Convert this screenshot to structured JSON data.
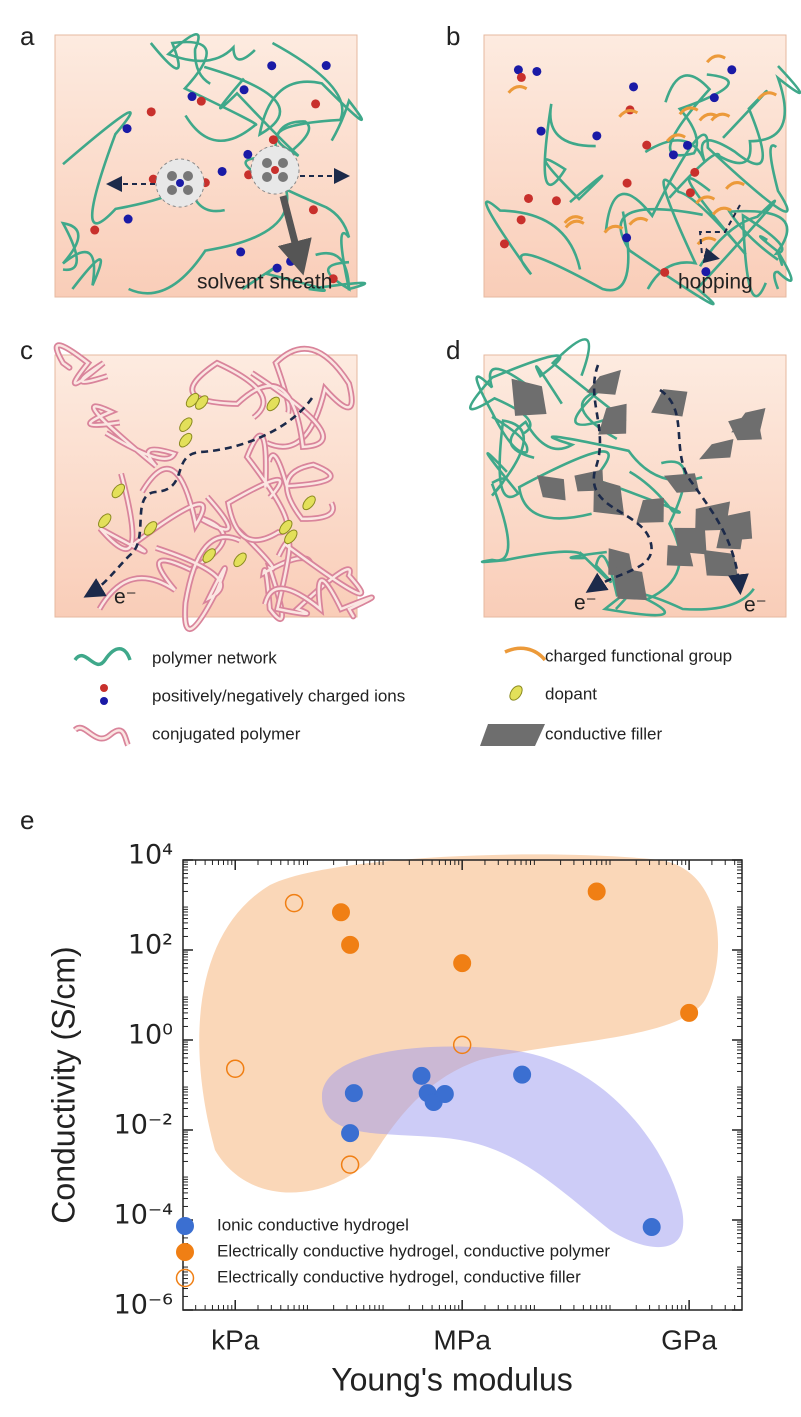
{
  "panels": {
    "a": {
      "label": "a",
      "annotation": "solvent sheath"
    },
    "b": {
      "label": "b",
      "annotation": "hopping"
    },
    "c": {
      "label": "c",
      "annotation": "e⁻"
    },
    "d": {
      "label": "d",
      "annotations": [
        "e⁻",
        "e⁻"
      ]
    }
  },
  "legend": [
    "polymer network",
    "positively/negatively charged ions",
    "conjugated polymer",
    "charged functional group",
    "dopant",
    "conductive filler"
  ],
  "chart_data": {
    "type": "scatter",
    "panel_label": "e",
    "x_label": "Young's modulus",
    "y_label": "Conductivity (S/cm)",
    "xscale": "log",
    "yscale": "log",
    "xlim": [
      204,
      5000000000
    ],
    "ylim": [
      1e-06,
      10000
    ],
    "xticks": [
      {
        "value": 1000,
        "label": "kPa"
      },
      {
        "value": 1000000,
        "label": "MPa"
      },
      {
        "value": 1000000000,
        "label": "GPa"
      }
    ],
    "yticks": [
      {
        "value": 1e-06,
        "label": "10⁻⁶"
      },
      {
        "value": 0.0001,
        "label": "10⁻⁴"
      },
      {
        "value": 0.01,
        "label": "10⁻²"
      },
      {
        "value": 1,
        "label": "10⁰"
      },
      {
        "value": 100,
        "label": "10²"
      },
      {
        "value": 10000,
        "label": "10⁴"
      }
    ],
    "legend_position": "lower left",
    "series": [
      {
        "name": "Ionic conductive hydrogel",
        "color": "#3b6fd1",
        "marker": "filled",
        "x": [
          37000,
          33000,
          290000,
          350000,
          420000,
          590000,
          6200000,
          320000000
        ],
        "values": [
          0.066,
          0.0085,
          0.16,
          0.066,
          0.042,
          0.063,
          0.17,
          7e-05
        ]
      },
      {
        "name": "Electrically conductive hydrogel, conductive polymer",
        "color": "#f07f14",
        "marker": "filled",
        "x": [
          25000,
          33000,
          1000000,
          60000000,
          1000000000
        ],
        "values": [
          690,
          130,
          51,
          2000,
          4
        ]
      },
      {
        "name": "Electrically conductive hydrogel, conductive filler",
        "color": "#f07f14",
        "marker": "open",
        "x": [
          6000,
          1000,
          1000000,
          33000
        ],
        "values": [
          1100,
          0.23,
          0.78,
          0.0017
        ]
      }
    ]
  }
}
